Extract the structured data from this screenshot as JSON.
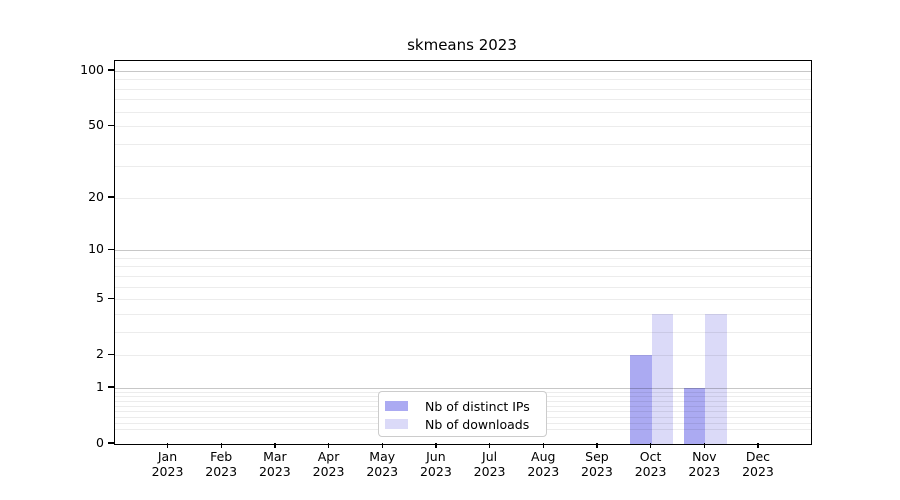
{
  "title": "skmeans 2023",
  "colors": {
    "distinct_ips": "#abaaf2",
    "downloads": "#dbdaf8",
    "axis": "#000000",
    "grid_major": "#c8c8c8",
    "grid_minor": "#ececec",
    "text": "#000000"
  },
  "legend": {
    "items": [
      {
        "label": "Nb of distinct IPs",
        "color_key": "distinct_ips"
      },
      {
        "label": "Nb of downloads",
        "color_key": "downloads"
      }
    ]
  },
  "chart_data": {
    "type": "bar",
    "title": "skmeans 2023",
    "xlabel": "",
    "ylabel": "",
    "yscale": "log1p",
    "ylim": [
      0,
      114
    ],
    "grid": true,
    "legend_position": "inside bottom-center",
    "categories": [
      "Jan",
      "Feb",
      "Mar",
      "Apr",
      "May",
      "Jun",
      "Jul",
      "Aug",
      "Sep",
      "Oct",
      "Nov",
      "Dec"
    ],
    "category_year": "2023",
    "series": [
      {
        "name": "Nb of distinct IPs",
        "color_key": "distinct_ips",
        "values": [
          0,
          0,
          0,
          0,
          0,
          0,
          0,
          0,
          0,
          2,
          1,
          0
        ]
      },
      {
        "name": "Nb of downloads",
        "color_key": "downloads",
        "values": [
          0,
          0,
          0,
          0,
          0,
          0,
          0,
          0,
          0,
          4,
          4,
          0
        ]
      }
    ],
    "y_ticks": [
      0,
      1,
      2,
      5,
      10,
      20,
      50,
      100
    ],
    "y_gridlines_major": [
      1,
      10,
      100
    ],
    "y_gridlines_minor": [
      0.2,
      0.3,
      0.4,
      0.5,
      0.6,
      0.7,
      0.8,
      0.9,
      2,
      3,
      4,
      5,
      6,
      7,
      8,
      9,
      20,
      30,
      40,
      50,
      60,
      70,
      80,
      90
    ]
  }
}
